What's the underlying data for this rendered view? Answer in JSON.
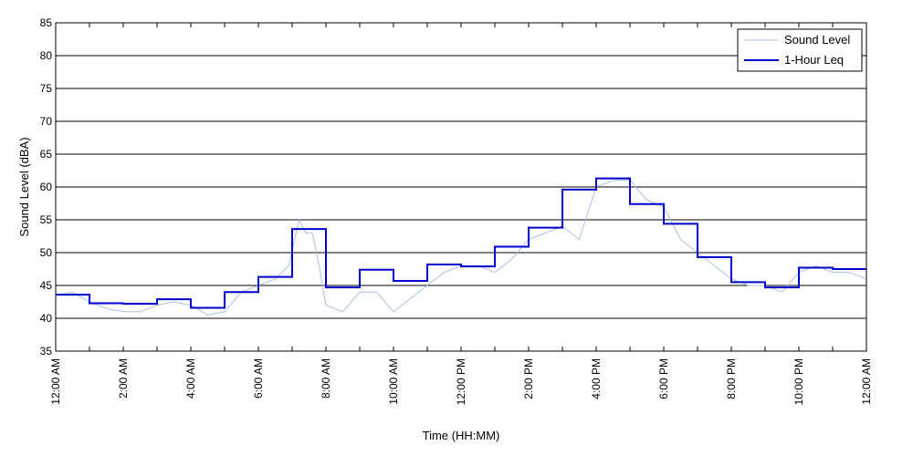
{
  "chart_data": {
    "type": "line",
    "title": "",
    "xlabel": "Time (HH:MM)",
    "ylabel": "Sound Level (dBA)",
    "ylim": [
      35,
      85
    ],
    "yticks": [
      35,
      40,
      45,
      50,
      55,
      60,
      65,
      70,
      75,
      80,
      85
    ],
    "xlim_hours": [
      0,
      24
    ],
    "x_tick_labels": [
      "12:00 AM",
      "2:00 AM",
      "4:00 AM",
      "6:00 AM",
      "8:00 AM",
      "10:00 AM",
      "12:00 PM",
      "2:00 PM",
      "4:00 PM",
      "6:00 PM",
      "8:00 PM",
      "10:00 PM",
      "12:00 AM"
    ],
    "grid": "horizontal",
    "legend_position": "top-right",
    "series": [
      {
        "name": "Sound Level",
        "color": "#a8c0ec",
        "style": "thin-line",
        "x_hours": [
          0.0,
          0.5,
          1.0,
          1.5,
          2.0,
          2.5,
          3.0,
          3.5,
          4.0,
          4.5,
          5.0,
          5.5,
          6.0,
          6.5,
          6.9,
          7.2,
          7.4,
          7.6,
          7.8,
          8.0,
          8.5,
          9.0,
          9.5,
          10.0,
          10.5,
          11.0,
          11.5,
          12.0,
          12.5,
          13.0,
          13.5,
          14.0,
          14.5,
          15.0,
          15.5,
          16.0,
          16.5,
          17.0,
          17.5,
          18.0,
          18.5,
          19.0,
          19.5,
          20.0,
          20.5,
          21.0,
          21.5,
          22.0,
          22.5,
          23.0,
          23.5,
          24.0
        ],
        "values": [
          43.5,
          44,
          42.5,
          41.5,
          41,
          41,
          42,
          42.5,
          42,
          40.5,
          41,
          44,
          45,
          46,
          48,
          55,
          53,
          53,
          48,
          42,
          41,
          44,
          44,
          41,
          43,
          45,
          47,
          48,
          48,
          47,
          49,
          52,
          53,
          54,
          52,
          60,
          61,
          61,
          58,
          57,
          52,
          50,
          48,
          46,
          45,
          45,
          44,
          47,
          48,
          47,
          47,
          46
        ]
      },
      {
        "name": "1-Hour Leq",
        "color": "#0000cc",
        "style": "step",
        "x_hours": [
          0,
          1,
          2,
          3,
          4,
          5,
          6,
          7,
          8,
          9,
          10,
          11,
          12,
          13,
          14,
          15,
          16,
          17,
          18,
          19,
          20,
          21,
          22,
          23
        ],
        "values": [
          43.6,
          42.3,
          42.2,
          42.9,
          41.6,
          44.0,
          46.3,
          53.6,
          44.7,
          47.4,
          45.7,
          48.2,
          47.9,
          50.9,
          53.8,
          59.6,
          61.3,
          57.4,
          54.4,
          49.3,
          45.5,
          44.7,
          47.7,
          47.5
        ]
      }
    ]
  }
}
